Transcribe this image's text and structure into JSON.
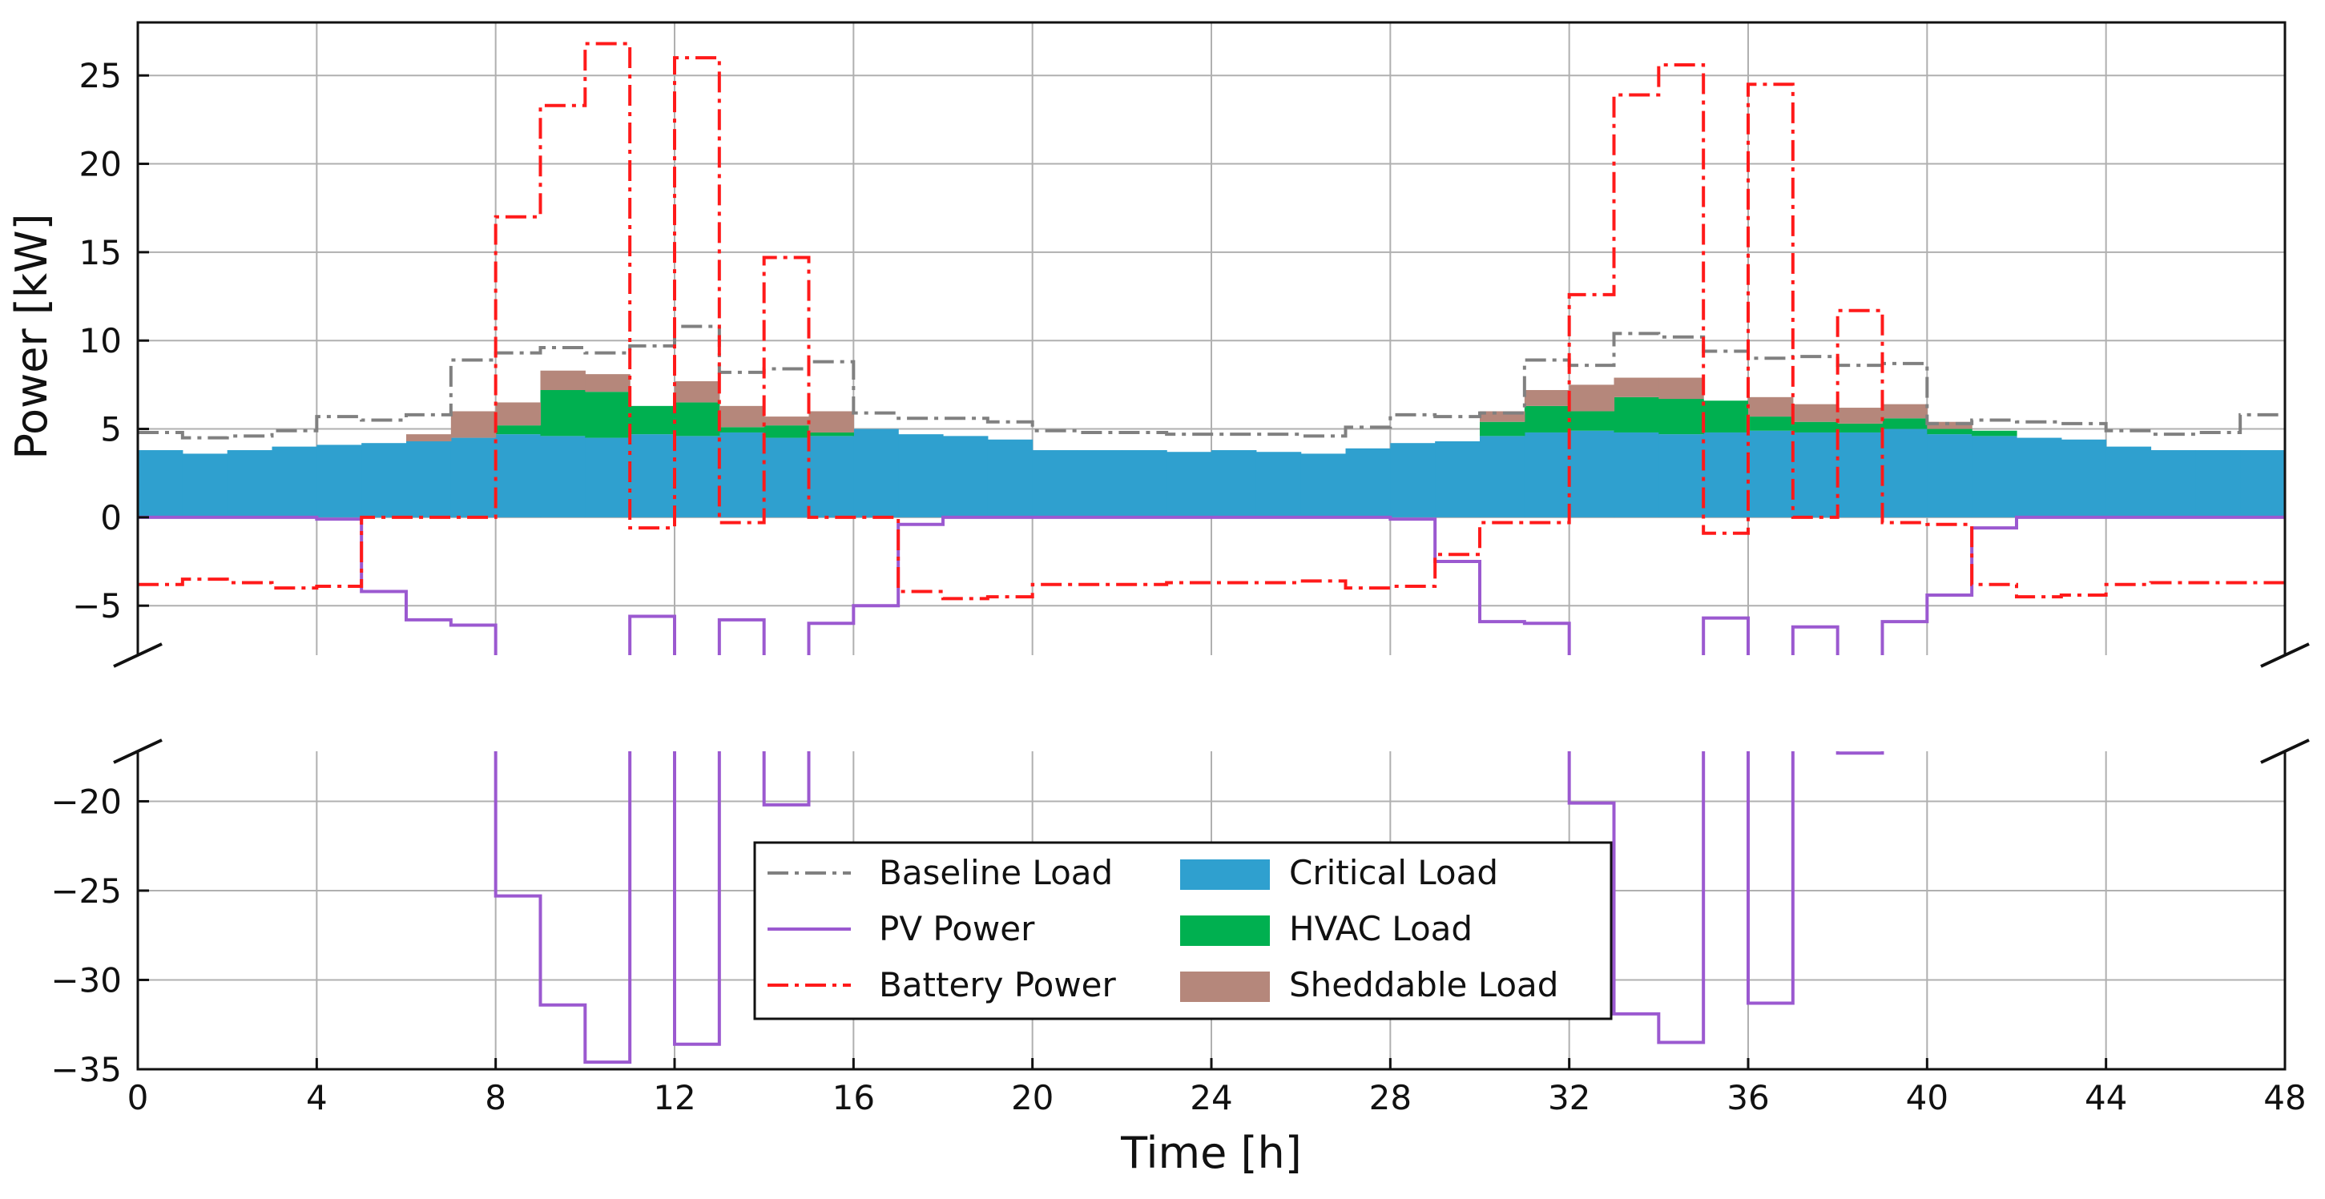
{
  "chart_data": {
    "type": "line",
    "xlabel": "Time [h]",
    "ylabel": "Power [kW]",
    "xlim": [
      0,
      48
    ],
    "x_ticks": [
      "0",
      "4",
      "8",
      "12",
      "16",
      "20",
      "24",
      "28",
      "32",
      "36",
      "40",
      "44",
      "48"
    ],
    "y_axis_break": {
      "upper_range": [
        -7.8,
        28
      ],
      "lower_range": [
        -35,
        -17.2
      ]
    },
    "y_ticks_upper": [
      "−5",
      "0",
      "5",
      "10",
      "15",
      "20",
      "25"
    ],
    "y_ticks_lower": [
      "−35",
      "−30",
      "−25",
      "−20"
    ],
    "grid": true,
    "legend_position": "lower-center",
    "x": [
      0,
      1,
      2,
      3,
      4,
      5,
      6,
      7,
      8,
      9,
      10,
      11,
      12,
      13,
      14,
      15,
      16,
      17,
      18,
      19,
      20,
      21,
      22,
      23,
      24,
      25,
      26,
      27,
      28,
      29,
      30,
      31,
      32,
      33,
      34,
      35,
      36,
      37,
      38,
      39,
      40,
      41,
      42,
      43,
      44,
      45,
      46,
      47
    ],
    "series": [
      {
        "name": "Baseline Load",
        "kind": "step-line",
        "color": "#808080",
        "dash": "dashdot",
        "values": [
          4.8,
          4.5,
          4.6,
          4.9,
          5.7,
          5.5,
          5.8,
          8.9,
          9.3,
          9.6,
          9.3,
          9.7,
          10.8,
          8.2,
          8.4,
          8.8,
          5.9,
          5.6,
          5.6,
          5.4,
          4.9,
          4.8,
          4.8,
          4.7,
          4.7,
          4.7,
          4.6,
          5.1,
          5.8,
          5.7,
          5.9,
          8.9,
          8.6,
          10.4,
          10.2,
          9.4,
          9.0,
          9.1,
          8.6,
          8.7,
          5.3,
          5.5,
          5.4,
          5.3,
          4.9,
          4.7,
          4.8,
          5.8
        ]
      },
      {
        "name": "PV Power",
        "kind": "step-line",
        "color": "#9b59d0",
        "dash": "solid",
        "values": [
          0,
          0,
          0,
          0,
          -0.1,
          -4.2,
          -5.8,
          -6.1,
          -25.3,
          -31.4,
          -34.6,
          -5.6,
          -33.6,
          -5.8,
          -20.2,
          -6.0,
          -5.0,
          -0.4,
          0,
          0,
          0,
          0,
          0,
          0,
          0,
          0,
          0,
          0,
          -0.1,
          -2.5,
          -5.9,
          -6.0,
          -20.1,
          -31.9,
          -33.5,
          -5.7,
          -31.3,
          -6.2,
          -17.3,
          -5.9,
          -4.4,
          -0.6,
          0,
          0,
          0,
          0,
          0,
          0
        ]
      },
      {
        "name": "Battery Power",
        "kind": "step-line",
        "color": "#ff1a1a",
        "dash": "dashdot",
        "values": [
          -3.8,
          -3.5,
          -3.7,
          -4.0,
          -3.9,
          0.0,
          0.0,
          0.0,
          17.0,
          23.3,
          26.8,
          -0.6,
          26.0,
          -0.3,
          14.7,
          0.0,
          0.0,
          -4.2,
          -4.6,
          -4.5,
          -3.8,
          -3.8,
          -3.8,
          -3.7,
          -3.7,
          -3.7,
          -3.6,
          -4.0,
          -3.9,
          -2.1,
          -0.3,
          -0.3,
          12.6,
          23.9,
          25.6,
          -0.9,
          24.5,
          0.0,
          11.7,
          -0.3,
          -0.4,
          -3.8,
          -4.5,
          -4.4,
          -3.8,
          -3.7,
          -3.7,
          -3.7
        ]
      },
      {
        "name": "Critical Load",
        "kind": "stacked-area",
        "color": "#2fa0cf",
        "values": [
          3.8,
          3.6,
          3.8,
          4.0,
          4.1,
          4.2,
          4.3,
          4.5,
          4.7,
          4.6,
          4.5,
          4.7,
          4.6,
          4.8,
          4.5,
          4.6,
          5.0,
          4.7,
          4.6,
          4.4,
          3.8,
          3.8,
          3.8,
          3.7,
          3.8,
          3.7,
          3.6,
          3.9,
          4.2,
          4.3,
          4.6,
          4.8,
          4.9,
          4.8,
          4.7,
          4.8,
          4.9,
          4.8,
          4.8,
          5.0,
          4.7,
          4.6,
          4.5,
          4.4,
          4.0,
          3.8,
          3.8,
          3.8
        ]
      },
      {
        "name": "HVAC Load",
        "kind": "stacked-area",
        "color": "#00b050",
        "values": [
          0,
          0,
          0,
          0,
          0,
          0,
          0,
          0,
          0.5,
          2.6,
          2.6,
          1.6,
          1.9,
          0.3,
          0.7,
          0.2,
          0,
          0,
          0,
          0,
          0,
          0,
          0,
          0,
          0,
          0,
          0,
          0,
          0,
          0,
          0.8,
          1.5,
          1.1,
          2.0,
          2.0,
          1.8,
          0.8,
          0.6,
          0.5,
          0.6,
          0.3,
          0.3,
          0,
          0,
          0,
          0,
          0,
          0
        ]
      },
      {
        "name": "Sheddable Load",
        "kind": "stacked-area",
        "color": "#b5877b",
        "values": [
          0,
          0,
          0,
          0,
          0,
          0,
          0.4,
          1.5,
          1.3,
          1.1,
          1.0,
          0,
          1.2,
          1.2,
          0.5,
          1.2,
          0,
          0,
          0,
          0,
          0,
          0,
          0,
          0,
          0,
          0,
          0,
          0,
          0,
          0,
          0.6,
          0.9,
          1.5,
          1.1,
          1.2,
          0,
          1.1,
          1.0,
          0.9,
          0.8,
          0.4,
          0,
          0,
          0,
          0,
          0,
          0,
          0
        ]
      }
    ]
  }
}
